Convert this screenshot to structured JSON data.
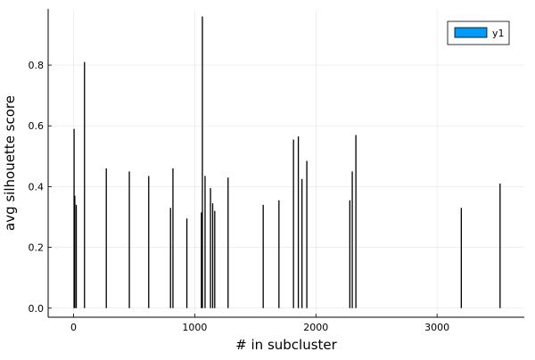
{
  "chart_data": {
    "type": "bar",
    "title": "",
    "xlabel": "# in subcluster",
    "ylabel": "avg silhouette score",
    "xlim": [
      -210,
      3720
    ],
    "ylim": [
      -0.03,
      0.985
    ],
    "xticks": [
      0,
      1000,
      2000,
      3000
    ],
    "xtick_labels": [
      "0",
      "1000",
      "2000",
      "3000"
    ],
    "yticks": [
      0.0,
      0.2,
      0.4,
      0.6,
      0.8
    ],
    "ytick_labels": [
      "0.0",
      "0.2",
      "0.4",
      "0.6",
      "0.8"
    ],
    "grid": true,
    "legend_position": "top-right",
    "series": [
      {
        "name": "y1",
        "color": "#009af9",
        "points": [
          {
            "x": 4,
            "y": 0.59
          },
          {
            "x": 10,
            "y": 0.37
          },
          {
            "x": 22,
            "y": 0.34
          },
          {
            "x": 90,
            "y": 0.81
          },
          {
            "x": 270,
            "y": 0.46
          },
          {
            "x": 460,
            "y": 0.45
          },
          {
            "x": 620,
            "y": 0.435
          },
          {
            "x": 800,
            "y": 0.33
          },
          {
            "x": 820,
            "y": 0.46
          },
          {
            "x": 935,
            "y": 0.295
          },
          {
            "x": 1055,
            "y": 0.315
          },
          {
            "x": 1063,
            "y": 0.96
          },
          {
            "x": 1085,
            "y": 0.435
          },
          {
            "x": 1130,
            "y": 0.395
          },
          {
            "x": 1148,
            "y": 0.345
          },
          {
            "x": 1165,
            "y": 0.32
          },
          {
            "x": 1275,
            "y": 0.43
          },
          {
            "x": 1565,
            "y": 0.34
          },
          {
            "x": 1695,
            "y": 0.355
          },
          {
            "x": 1815,
            "y": 0.555
          },
          {
            "x": 1855,
            "y": 0.565
          },
          {
            "x": 1885,
            "y": 0.425
          },
          {
            "x": 1925,
            "y": 0.485
          },
          {
            "x": 2280,
            "y": 0.355
          },
          {
            "x": 2300,
            "y": 0.45
          },
          {
            "x": 2330,
            "y": 0.57
          },
          {
            "x": 3200,
            "y": 0.33
          },
          {
            "x": 3520,
            "y": 0.41
          }
        ]
      }
    ]
  }
}
